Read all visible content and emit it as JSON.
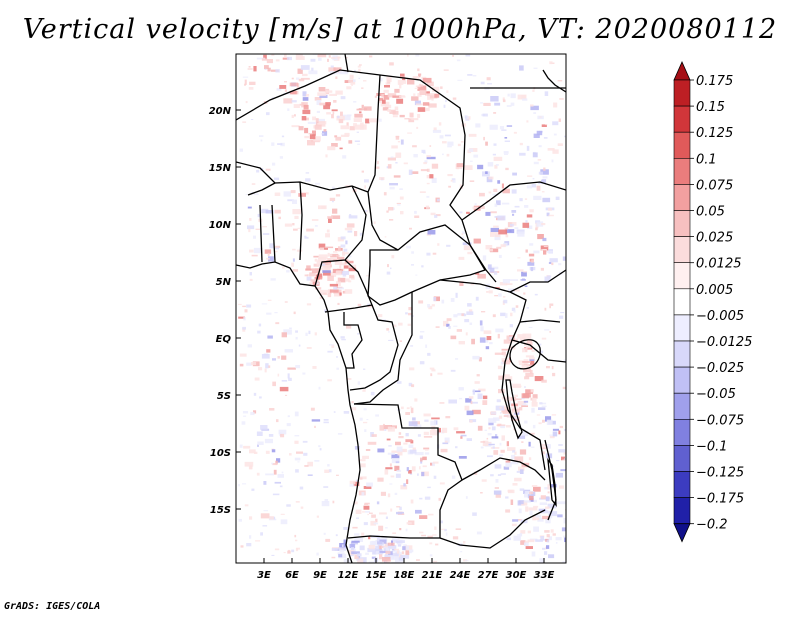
{
  "title": "Vertical velocity [m/s] at 1000hPa, VT: 2020080112",
  "footer": "GrADS: IGES/COLA",
  "map": {
    "lat_labels": [
      "20N",
      "15N",
      "10N",
      "5N",
      "EQ",
      "5S",
      "10S",
      "15S"
    ],
    "lon_labels": [
      "3E",
      "6E",
      "9E",
      "12E",
      "15E",
      "18E",
      "21E",
      "24E",
      "27E",
      "30E",
      "33E"
    ]
  },
  "colorbar": {
    "labels": [
      "0.175",
      "0.15",
      "0.125",
      "0.1",
      "0.075",
      "0.05",
      "0.025",
      "0.0125",
      "0.005",
      "−0.005",
      "−0.0125",
      "−0.025",
      "−0.05",
      "−0.075",
      "−0.1",
      "−0.125",
      "−0.175",
      "−0.2"
    ],
    "colors": [
      "#a50f15",
      "#bd1f24",
      "#d1363a",
      "#e05a5a",
      "#ea7d7d",
      "#f2a0a0",
      "#f7c0c0",
      "#fbdcdc",
      "#fff0f0",
      "#ffffff",
      "#eeeeff",
      "#d8d8fa",
      "#c0c0f5",
      "#a0a0ec",
      "#8080e0",
      "#6060d0",
      "#3c3cc0",
      "#2020a8",
      "#10108a"
    ]
  }
}
